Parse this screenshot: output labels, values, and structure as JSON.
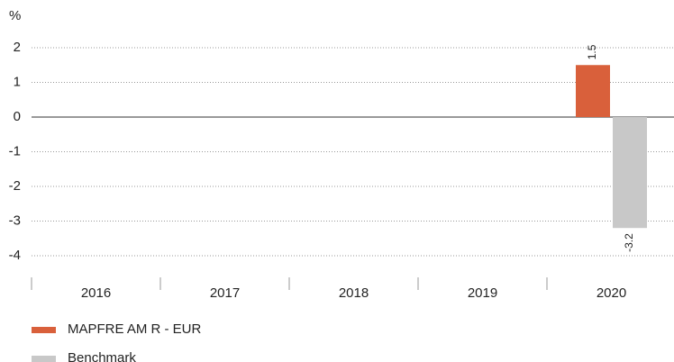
{
  "chart_data": {
    "type": "bar",
    "y_label": "%",
    "categories": [
      "2016",
      "2017",
      "2018",
      "2019",
      "2020"
    ],
    "series": [
      {
        "name": "MAPFRE AM R - EUR",
        "color": "#d9603b",
        "values": [
          null,
          null,
          null,
          null,
          1.5
        ]
      },
      {
        "name": "Benchmark",
        "color": "#c8c8c8",
        "values": [
          null,
          null,
          null,
          null,
          -3.2
        ]
      }
    ],
    "ylim": [
      -4.4,
      2.5
    ],
    "yticks": [
      -4,
      -3,
      -2,
      -1,
      0,
      1,
      2
    ],
    "grid": true
  }
}
